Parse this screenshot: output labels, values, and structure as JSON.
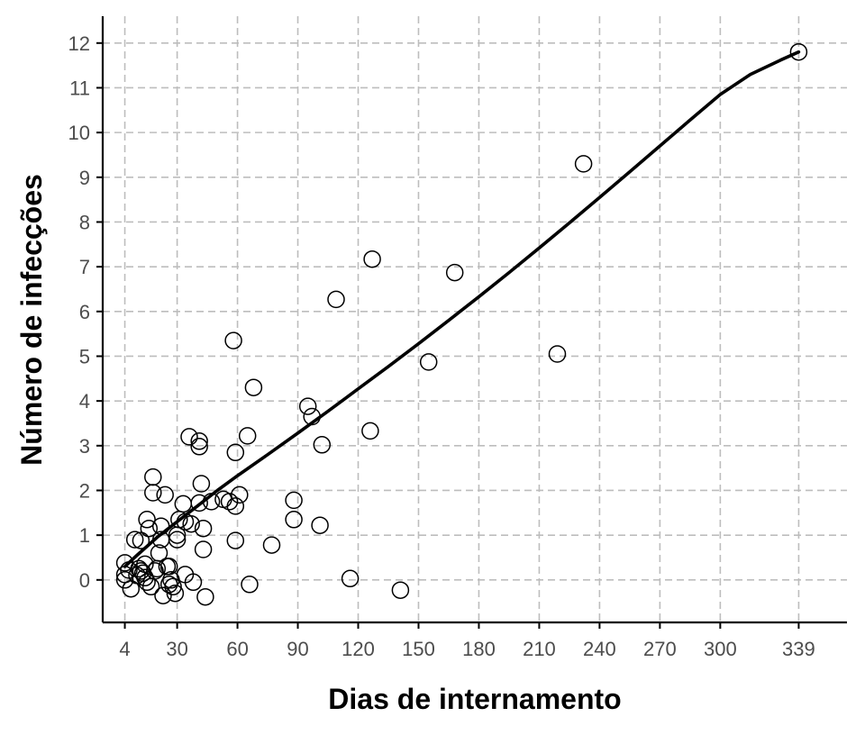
{
  "chart_data": {
    "type": "scatter",
    "xlabel": "Dias de internamento",
    "ylabel": "Número de infecções",
    "xlim": [
      -7,
      363
    ],
    "ylim": [
      -0.95,
      12.6
    ],
    "x_ticks": [
      4,
      30,
      60,
      90,
      120,
      150,
      180,
      210,
      240,
      270,
      300,
      339
    ],
    "y_ticks": [
      0,
      1,
      2,
      3,
      4,
      5,
      6,
      7,
      8,
      9,
      10,
      11,
      12
    ],
    "grid": true,
    "legend": "none",
    "colors": {
      "points": "#000000",
      "fit": "#000000",
      "grid": "#bdbdbd"
    },
    "points": [
      [
        4,
        0.38
      ],
      [
        4,
        0.12
      ],
      [
        4,
        0.0
      ],
      [
        6,
        0.22
      ],
      [
        7,
        -0.2
      ],
      [
        9,
        0.9
      ],
      [
        10,
        0.1
      ],
      [
        11,
        0.25
      ],
      [
        12,
        0.88
      ],
      [
        12,
        0.2
      ],
      [
        13,
        0.15
      ],
      [
        14,
        0.35
      ],
      [
        14,
        0.05
      ],
      [
        15,
        1.35
      ],
      [
        15,
        -0.05
      ],
      [
        16,
        1.15
      ],
      [
        17,
        -0.15
      ],
      [
        18,
        2.3
      ],
      [
        18,
        1.95
      ],
      [
        19,
        0.2
      ],
      [
        20,
        0.25
      ],
      [
        21,
        0.6
      ],
      [
        22,
        1.2
      ],
      [
        22,
        0.9
      ],
      [
        23,
        -0.35
      ],
      [
        24,
        1.9
      ],
      [
        25,
        0.3
      ],
      [
        26,
        0.3
      ],
      [
        26,
        -0.1
      ],
      [
        27,
        0.0
      ],
      [
        28,
        -0.15
      ],
      [
        29,
        -0.3
      ],
      [
        30,
        0.9
      ],
      [
        30,
        1.0
      ],
      [
        31,
        1.35
      ],
      [
        33,
        1.7
      ],
      [
        34,
        1.3
      ],
      [
        34,
        0.12
      ],
      [
        36,
        3.2
      ],
      [
        37,
        1.25
      ],
      [
        38,
        -0.05
      ],
      [
        41,
        3.1
      ],
      [
        41,
        2.98
      ],
      [
        41,
        1.72
      ],
      [
        42,
        2.15
      ],
      [
        43,
        1.15
      ],
      [
        43,
        0.68
      ],
      [
        44,
        -0.38
      ],
      [
        47,
        1.75
      ],
      [
        53,
        1.8
      ],
      [
        56,
        1.75
      ],
      [
        58,
        5.35
      ],
      [
        59,
        2.85
      ],
      [
        59,
        1.65
      ],
      [
        59,
        0.88
      ],
      [
        61,
        1.9
      ],
      [
        65,
        3.22
      ],
      [
        66,
        -0.1
      ],
      [
        68,
        4.3
      ],
      [
        77,
        0.78
      ],
      [
        88,
        1.78
      ],
      [
        88,
        1.35
      ],
      [
        95,
        3.88
      ],
      [
        97,
        3.65
      ],
      [
        101,
        1.22
      ],
      [
        102,
        3.02
      ],
      [
        109,
        6.27
      ],
      [
        116,
        0.03
      ],
      [
        126,
        3.33
      ],
      [
        127,
        7.17
      ],
      [
        141,
        -0.23
      ],
      [
        155,
        4.87
      ],
      [
        168,
        6.87
      ],
      [
        219,
        5.05
      ],
      [
        232,
        9.3
      ],
      [
        339,
        11.8
      ]
    ],
    "fit": [
      [
        4,
        0.3
      ],
      [
        10,
        0.55
      ],
      [
        20,
        0.95
      ],
      [
        30,
        1.3
      ],
      [
        40,
        1.65
      ],
      [
        50,
        2.0
      ],
      [
        60,
        2.33
      ],
      [
        75,
        2.8
      ],
      [
        90,
        3.28
      ],
      [
        105,
        3.77
      ],
      [
        120,
        4.27
      ],
      [
        135,
        4.77
      ],
      [
        150,
        5.28
      ],
      [
        165,
        5.8
      ],
      [
        180,
        6.33
      ],
      [
        195,
        6.87
      ],
      [
        210,
        7.42
      ],
      [
        225,
        7.98
      ],
      [
        240,
        8.55
      ],
      [
        255,
        9.12
      ],
      [
        270,
        9.7
      ],
      [
        285,
        10.28
      ],
      [
        300,
        10.85
      ],
      [
        315,
        11.3
      ],
      [
        330,
        11.62
      ],
      [
        339,
        11.8
      ]
    ]
  }
}
